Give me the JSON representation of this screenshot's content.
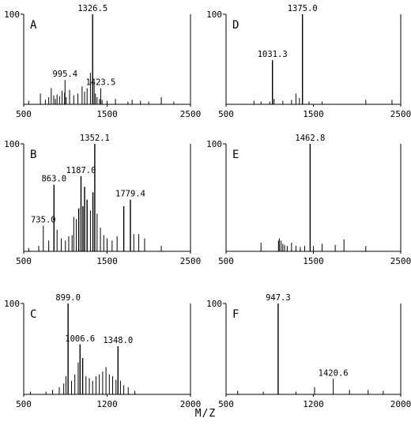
{
  "figure": {
    "xlabel": "M/Z"
  },
  "chart_data": [
    {
      "type": "bar",
      "panel": "A",
      "xlim": [
        500,
        2500
      ],
      "ylim": [
        0,
        100
      ],
      "xticks": [
        "500",
        "1500",
        "2500"
      ],
      "ytick": "100",
      "x": [
        560,
        700,
        760,
        800,
        830,
        860,
        880,
        900,
        930,
        960,
        990,
        995.4,
        1010,
        1050,
        1100,
        1150,
        1200,
        1230,
        1260,
        1300,
        1326.5,
        1345,
        1360,
        1380,
        1410,
        1423.5,
        1440,
        1500,
        1600,
        1750,
        1800,
        1900,
        2000,
        2150,
        2300
      ],
      "values": [
        4,
        12,
        5,
        8,
        18,
        10,
        6,
        11,
        9,
        15,
        13,
        27,
        8,
        16,
        10,
        12,
        20,
        14,
        18,
        35,
        100,
        25,
        12,
        8,
        6,
        18,
        5,
        4,
        6,
        3,
        5,
        4,
        3,
        8,
        3
      ],
      "labels": [
        {
          "x": 995.4,
          "text": "995.4"
        },
        {
          "x": 1326.5,
          "text": "1326.5"
        },
        {
          "x": 1423.5,
          "text": "1423.5"
        }
      ]
    },
    {
      "type": "bar",
      "panel": "B",
      "xlim": [
        500,
        2500
      ],
      "ylim": [
        0,
        100
      ],
      "xticks": [
        "500",
        "1500",
        "2500"
      ],
      "ytick": "100",
      "x": [
        560,
        680,
        735.0,
        800,
        863.0,
        900,
        950,
        1000,
        1040,
        1080,
        1100,
        1130,
        1160,
        1187.0,
        1210,
        1230,
        1260,
        1300,
        1330,
        1352.1,
        1380,
        1420,
        1460,
        1500,
        1560,
        1620,
        1700,
        1779.4,
        1820,
        1880,
        1950,
        2150
      ],
      "values": [
        3,
        5,
        24,
        10,
        62,
        20,
        12,
        10,
        14,
        15,
        32,
        30,
        40,
        70,
        42,
        60,
        48,
        38,
        55,
        100,
        35,
        22,
        15,
        12,
        10,
        14,
        42,
        48,
        16,
        16,
        12,
        5
      ],
      "labels": [
        {
          "x": 735.0,
          "text": "735.0"
        },
        {
          "x": 863.0,
          "text": "863.0"
        },
        {
          "x": 1187.0,
          "text": "1187.0"
        },
        {
          "x": 1352.1,
          "text": "1352.1"
        },
        {
          "x": 1779.4,
          "text": "1779.4"
        }
      ]
    },
    {
      "type": "bar",
      "panel": "C",
      "xlim": [
        500,
        2000
      ],
      "ylim": [
        0,
        100
      ],
      "xticks": [
        "500",
        "1200",
        "2000"
      ],
      "ytick": "100",
      "x": [
        560,
        700,
        760,
        820,
        860,
        880,
        899.0,
        930,
        960,
        990,
        1006.6,
        1030,
        1060,
        1090,
        1120,
        1150,
        1180,
        1210,
        1240,
        1270,
        1300,
        1330,
        1348.0,
        1370,
        1400,
        1440,
        1500
      ],
      "values": [
        3,
        3,
        5,
        8,
        12,
        20,
        100,
        15,
        22,
        35,
        55,
        40,
        20,
        18,
        15,
        20,
        22,
        25,
        30,
        22,
        20,
        16,
        53,
        15,
        10,
        8,
        4
      ],
      "labels": [
        {
          "x": 899.0,
          "text": "899.0"
        },
        {
          "x": 1006.6,
          "text": "1006.6"
        },
        {
          "x": 1348.0,
          "text": "1348.0"
        }
      ]
    },
    {
      "type": "bar",
      "panel": "D",
      "xlim": [
        500,
        2500
      ],
      "ylim": [
        0,
        100
      ],
      "xticks": [
        "500",
        "1500",
        "2500"
      ],
      "ytick": "100",
      "x": [
        820,
        900,
        1000,
        1031.3,
        1050,
        1150,
        1250,
        1300,
        1340,
        1375.0,
        1450,
        1600,
        2100,
        2400
      ],
      "values": [
        4,
        3,
        3,
        49,
        6,
        4,
        5,
        12,
        7,
        100,
        3,
        3,
        5,
        5
      ],
      "labels": [
        {
          "x": 1031.3,
          "text": "1031.3"
        },
        {
          "x": 1375.0,
          "text": "1375.0"
        }
      ]
    },
    {
      "type": "bar",
      "panel": "E",
      "xlim": [
        500,
        2500
      ],
      "ylim": [
        0,
        100
      ],
      "xticks": [
        "500",
        "1500",
        "2500"
      ],
      "ytick": "100",
      "x": [
        900,
        1100,
        1110,
        1130,
        1150,
        1170,
        1200,
        1250,
        1300,
        1350,
        1400,
        1462.8,
        1500,
        1600,
        1750,
        1850,
        2100
      ],
      "values": [
        8,
        10,
        12,
        10,
        7,
        6,
        5,
        8,
        5,
        4,
        5,
        100,
        5,
        7,
        6,
        11,
        5
      ],
      "labels": [
        {
          "x": 1462.8,
          "text": "1462.8"
        }
      ]
    },
    {
      "type": "bar",
      "panel": "F",
      "xlim": [
        500,
        2000
      ],
      "ylim": [
        0,
        100
      ],
      "xticks": [
        "500",
        "1200",
        "2000"
      ],
      "ytick": "100",
      "x": [
        600,
        820,
        947.3,
        1100,
        1260,
        1420.6,
        1560,
        1720,
        1850
      ],
      "values": [
        4,
        3,
        100,
        3,
        8,
        17,
        5,
        5,
        4
      ],
      "labels": [
        {
          "x": 947.3,
          "text": "947.3"
        },
        {
          "x": 1420.6,
          "text": "1420.6"
        }
      ]
    }
  ]
}
